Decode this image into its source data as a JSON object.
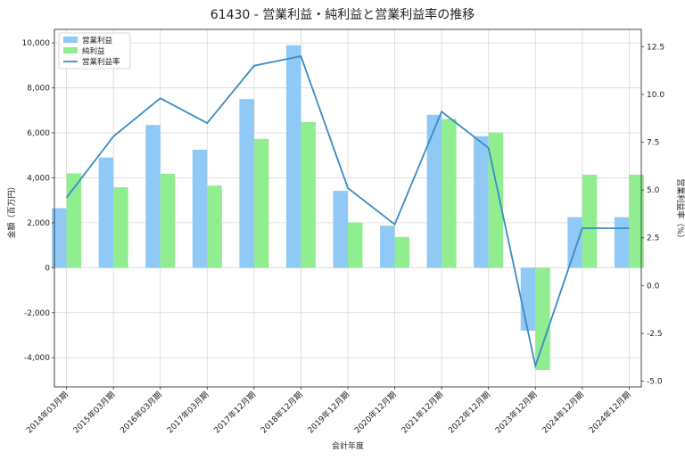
{
  "chart_data": {
    "type": "bar",
    "title": "61430 - 営業利益・純利益と営業利益率の推移",
    "xlabel": "会計年度",
    "ylabel": "金額（百万円）",
    "y2label": "営業利益率（%）",
    "categories": [
      "2014年03月期",
      "2015年03月期",
      "2016年03月期",
      "2017年03月期",
      "2017年12月期",
      "2018年12月期",
      "2019年12月期",
      "2020年12月期",
      "2021年12月期",
      "2022年12月期",
      "2023年12月期",
      "2024年12月期",
      "2024年12月期"
    ],
    "ylim": [
      -5300,
      10600
    ],
    "y2lim": [
      -5.3,
      13.4
    ],
    "yticks": [
      -4000,
      -2000,
      0,
      2000,
      4000,
      6000,
      8000,
      10000
    ],
    "ytick_labels": [
      "-4,000",
      "-2,000",
      "0",
      "2,000",
      "4,000",
      "6,000",
      "8,000",
      "10,000"
    ],
    "y2ticks": [
      -5.0,
      -2.5,
      0.0,
      2.5,
      5.0,
      7.5,
      10.0,
      12.5
    ],
    "y2tick_labels": [
      "-5.0",
      "-2.5",
      "0.0",
      "2.5",
      "5.0",
      "7.5",
      "10.0",
      "12.5"
    ],
    "grid": true,
    "legend_position": "top-left",
    "series": [
      {
        "name": "営業利益",
        "kind": "bar",
        "axis": "left",
        "color": "#90c9f5",
        "values": [
          2650,
          4900,
          6350,
          5250,
          7500,
          9900,
          3420,
          1870,
          6800,
          5850,
          -2800,
          2250,
          2250
        ]
      },
      {
        "name": "純利益",
        "kind": "bar",
        "axis": "left",
        "color": "#90ee90",
        "values": [
          4200,
          3580,
          4180,
          3650,
          5730,
          6480,
          2020,
          1370,
          6620,
          6020,
          -4550,
          4140,
          4140
        ]
      },
      {
        "name": "営業利益率",
        "kind": "line",
        "axis": "right",
        "color": "#3a8cc4",
        "values": [
          4.6,
          7.8,
          9.8,
          8.5,
          11.5,
          12.0,
          5.1,
          3.2,
          9.1,
          7.2,
          -4.2,
          3.0,
          3.0
        ]
      }
    ]
  }
}
